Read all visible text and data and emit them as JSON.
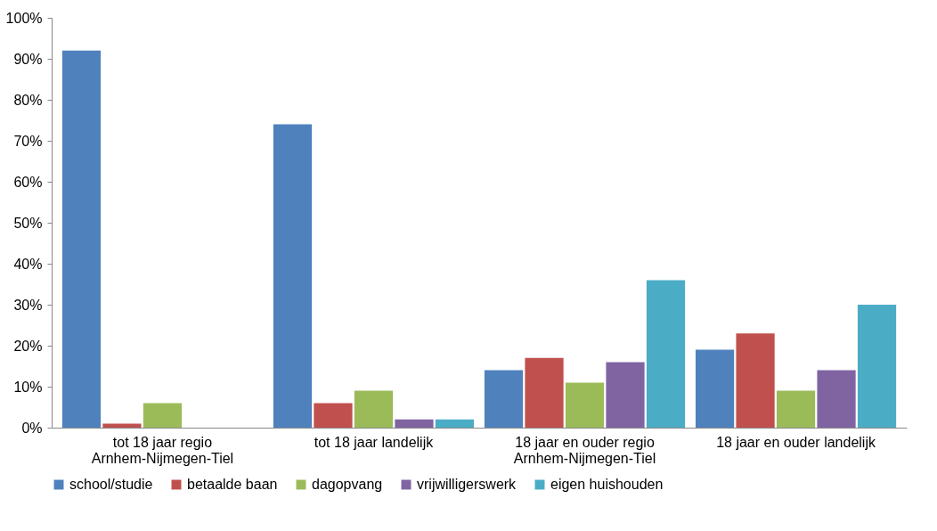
{
  "chart_data": {
    "type": "bar",
    "categories": [
      "tot 18 jaar regio Arnhem-Nijmegen-Tiel",
      "tot 18 jaar landelijk",
      "18 jaar en ouder regio Arnhem-Nijmegen-Tiel",
      "18 jaar en ouder landelijk"
    ],
    "series": [
      {
        "name": "school/studie",
        "color": "#4f81bd",
        "values": [
          92,
          74,
          14,
          19
        ]
      },
      {
        "name": "betaalde baan",
        "color": "#c0504d",
        "values": [
          1,
          6,
          17,
          23
        ]
      },
      {
        "name": "dagopvang",
        "color": "#9bbb59",
        "values": [
          6,
          9,
          11,
          9
        ]
      },
      {
        "name": "vrijwilligerswerk",
        "color": "#8064a2",
        "values": [
          null,
          2,
          16,
          14
        ]
      },
      {
        "name": "eigen huishouden",
        "color": "#4bacc6",
        "values": [
          null,
          2,
          36,
          30
        ]
      }
    ],
    "ylim": [
      0,
      100
    ],
    "yticks": [
      {
        "value": 0,
        "label": "0%"
      },
      {
        "value": 10,
        "label": "10%"
      },
      {
        "value": 20,
        "label": "20%"
      },
      {
        "value": 30,
        "label": "30%"
      },
      {
        "value": 40,
        "label": "40%"
      },
      {
        "value": 50,
        "label": "50%"
      },
      {
        "value": 60,
        "label": "60%"
      },
      {
        "value": 70,
        "label": "70%"
      },
      {
        "value": 80,
        "label": "80%"
      },
      {
        "value": 90,
        "label": "90%"
      },
      {
        "value": 100,
        "label": "100%"
      }
    ],
    "grid": false,
    "legend": "bottom"
  }
}
